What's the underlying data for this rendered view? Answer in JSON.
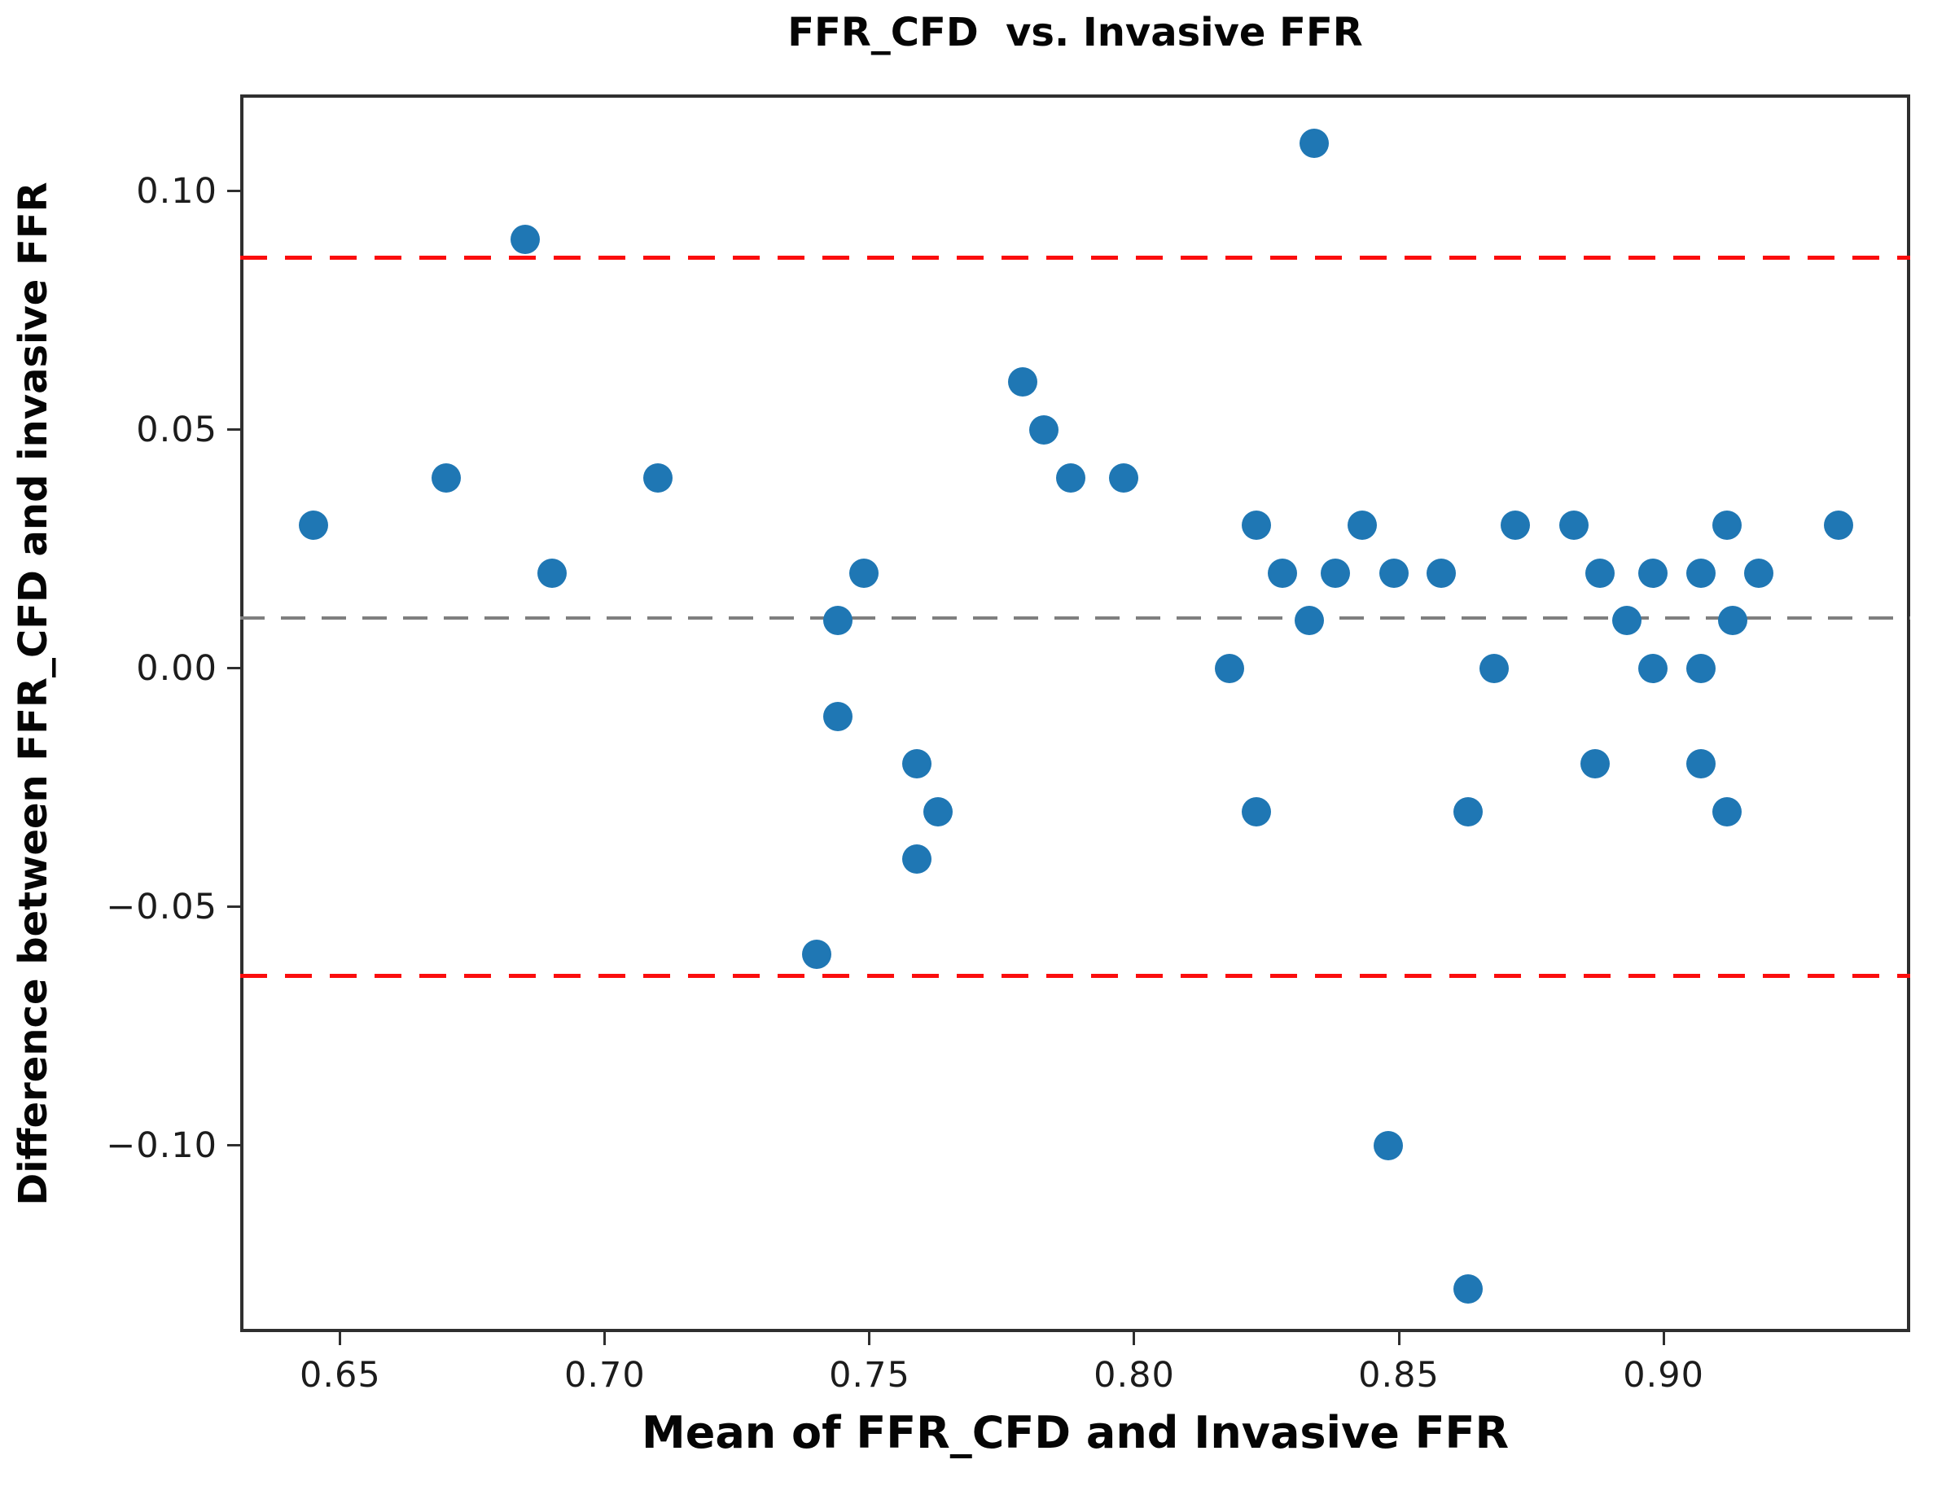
{
  "chart_data": {
    "type": "scatter",
    "title": "FFR_CFD  vs. Invasive FFR",
    "xlabel": "Mean of FFR_CFD and Invasive FFR",
    "ylabel": "Difference between FFR_CFD and invasive FFR",
    "xlim": [
      0.6311,
      0.9466
    ],
    "ylim": [
      -0.1391,
      0.1203
    ],
    "grid": false,
    "legend": false,
    "background_color": "#ffffff",
    "spine_color": "#2f2f2f",
    "xticks": [
      {
        "value": 0.65,
        "label": "0.65"
      },
      {
        "value": 0.7,
        "label": "0.70"
      },
      {
        "value": 0.75,
        "label": "0.75"
      },
      {
        "value": 0.8,
        "label": "0.80"
      },
      {
        "value": 0.85,
        "label": "0.85"
      },
      {
        "value": 0.9,
        "label": "0.90"
      }
    ],
    "yticks": [
      {
        "value": 0.1,
        "label": "0.10"
      },
      {
        "value": 0.05,
        "label": "0.05"
      },
      {
        "value": 0.0,
        "label": "0.00"
      },
      {
        "value": -0.05,
        "label": "−0.05"
      },
      {
        "value": -0.1,
        "label": "−0.10"
      }
    ],
    "reference_lines": [
      {
        "name": "upper-limit-of-agreement",
        "value": 0.086,
        "color": "#fb0d0d",
        "style": "dashed"
      },
      {
        "name": "mean-difference",
        "value": 0.0105,
        "color": "#7f7f7f",
        "style": "dashed"
      },
      {
        "name": "lower-limit-of-agreement",
        "value": -0.0645,
        "color": "#fb0d0d",
        "style": "dashed"
      }
    ],
    "series": [
      {
        "name": "lesions",
        "marker": "circle",
        "color": "#1f77b4",
        "points": [
          [
            0.645,
            0.03
          ],
          [
            0.67,
            0.04
          ],
          [
            0.685,
            0.09
          ],
          [
            0.69,
            0.02
          ],
          [
            0.71,
            0.04
          ],
          [
            0.74,
            -0.06
          ],
          [
            0.744,
            0.01
          ],
          [
            0.744,
            -0.01
          ],
          [
            0.749,
            0.02
          ],
          [
            0.759,
            -0.02
          ],
          [
            0.759,
            -0.04
          ],
          [
            0.763,
            -0.03
          ],
          [
            0.779,
            0.06
          ],
          [
            0.783,
            0.05
          ],
          [
            0.788,
            0.04
          ],
          [
            0.798,
            0.04
          ],
          [
            0.818,
            0.0
          ],
          [
            0.823,
            0.03
          ],
          [
            0.823,
            -0.03
          ],
          [
            0.828,
            0.02
          ],
          [
            0.834,
            0.11
          ],
          [
            0.833,
            0.01
          ],
          [
            0.838,
            0.02
          ],
          [
            0.843,
            0.03
          ],
          [
            0.849,
            0.02
          ],
          [
            0.848,
            -0.1
          ],
          [
            0.858,
            0.02
          ],
          [
            0.863,
            -0.03
          ],
          [
            0.863,
            -0.13
          ],
          [
            0.868,
            0.0
          ],
          [
            0.872,
            0.03
          ],
          [
            0.883,
            0.03
          ],
          [
            0.888,
            0.02
          ],
          [
            0.887,
            -0.02
          ],
          [
            0.893,
            0.01
          ],
          [
            0.898,
            0.02
          ],
          [
            0.898,
            0.0
          ],
          [
            0.907,
            0.02
          ],
          [
            0.907,
            0.0
          ],
          [
            0.907,
            -0.02
          ],
          [
            0.912,
            0.03
          ],
          [
            0.912,
            -0.03
          ],
          [
            0.913,
            0.01
          ],
          [
            0.918,
            0.02
          ],
          [
            0.933,
            0.03
          ]
        ]
      }
    ]
  }
}
